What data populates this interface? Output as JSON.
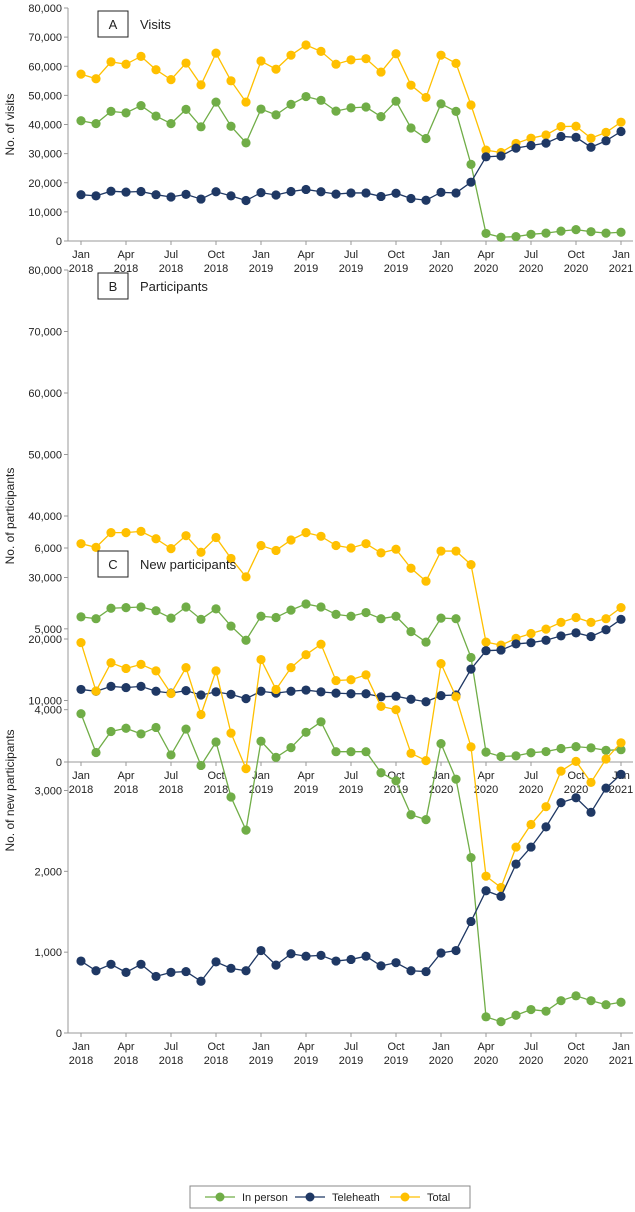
{
  "chart_data": [
    {
      "type": "line",
      "panel": "A",
      "title": "Visits",
      "ylabel": "No. of visits",
      "ylim": [
        0,
        80000
      ],
      "yticks": [
        "0",
        "10,000",
        "20,000",
        "30,000",
        "40,000",
        "50,000",
        "60,000",
        "70,000",
        "80,000"
      ],
      "series": [
        {
          "name": "Total",
          "values": [
            57300,
            55700,
            61500,
            60700,
            63400,
            58800,
            55400,
            61100,
            53600,
            64500,
            55000,
            47700,
            61800,
            59000,
            63800,
            67300,
            65100,
            60700,
            62200,
            62600,
            58000,
            64300,
            53500,
            49300,
            63800,
            61000,
            46700,
            31200,
            30400,
            33500,
            35300,
            36400,
            39300,
            39400,
            35300,
            37300,
            40800
          ]
        },
        {
          "name": "In person",
          "values": [
            41300,
            40300,
            44500,
            44000,
            46500,
            42900,
            40300,
            45200,
            39200,
            47700,
            39400,
            33700,
            45300,
            43300,
            46900,
            49600,
            48300,
            44600,
            45700,
            46000,
            42700,
            48000,
            38800,
            35200,
            47100,
            44500,
            26300,
            2600,
            1300,
            1500,
            2300,
            2700,
            3400,
            3900,
            3200,
            2700,
            3000
          ]
        },
        {
          "name": "Teleheath",
          "values": [
            15900,
            15500,
            17100,
            16800,
            17000,
            15900,
            15100,
            16000,
            14400,
            16900,
            15500,
            13900,
            16600,
            15800,
            17000,
            17700,
            16900,
            16100,
            16500,
            16500,
            15300,
            16400,
            14600,
            14000,
            16700,
            16500,
            20200,
            28900,
            29200,
            31900,
            32800,
            33600,
            35900,
            35600,
            32200,
            34400,
            37600
          ]
        }
      ]
    },
    {
      "type": "line",
      "panel": "B",
      "title": "Participants",
      "ylabel": "No. of participants",
      "ylim": [
        0,
        80000
      ],
      "yticks": [
        "0",
        "10,000",
        "20,000",
        "30,000",
        "40,000",
        "50,000",
        "60,000",
        "70,000",
        "80,000"
      ],
      "series": [
        {
          "name": "Total",
          "values": [
            35500,
            34900,
            37300,
            37300,
            37500,
            36300,
            34700,
            36800,
            34100,
            36500,
            33100,
            30100,
            35200,
            34400,
            36100,
            37300,
            36700,
            35200,
            34800,
            35500,
            34000,
            34600,
            31500,
            29400,
            34300,
            34300,
            32100,
            19500,
            19000,
            20100,
            20900,
            21600,
            22700,
            23500,
            22700,
            23300,
            25100
          ]
        },
        {
          "name": "In person",
          "values": [
            23600,
            23300,
            25000,
            25100,
            25200,
            24600,
            23400,
            25200,
            23200,
            24900,
            22100,
            19800,
            23700,
            23500,
            24700,
            25700,
            25200,
            24000,
            23700,
            24300,
            23300,
            23700,
            21200,
            19500,
            23400,
            23300,
            17000,
            1600,
            900,
            1000,
            1500,
            1700,
            2200,
            2500,
            2300,
            1900,
            2000
          ]
        },
        {
          "name": "Teleheath",
          "values": [
            11800,
            11500,
            12300,
            12100,
            12300,
            11500,
            11200,
            11600,
            10900,
            11400,
            11000,
            10300,
            11500,
            11200,
            11500,
            11700,
            11400,
            11200,
            11100,
            11100,
            10600,
            10700,
            10200,
            9800,
            10800,
            10900,
            15100,
            18100,
            18200,
            19200,
            19400,
            19800,
            20500,
            21000,
            20400,
            21500,
            23200
          ]
        }
      ]
    },
    {
      "type": "line",
      "panel": "C",
      "title": "New participants",
      "ylabel": "No. of new participants",
      "ylim": [
        0,
        6000
      ],
      "yticks": [
        "0",
        "1,000",
        "2,000",
        "3,000",
        "4,000",
        "5,000",
        "6,000"
      ],
      "series": [
        {
          "name": "Total",
          "values": [
            4830,
            4230,
            4580,
            4510,
            4560,
            4480,
            4200,
            4520,
            3940,
            4480,
            3710,
            3270,
            4620,
            4250,
            4520,
            4680,
            4810,
            4360,
            4370,
            4430,
            4040,
            4000,
            3460,
            3370,
            4570,
            4160,
            3540,
            1940,
            1800,
            2300,
            2580,
            2800,
            3240,
            3360,
            3100,
            3390,
            3590
          ]
        },
        {
          "name": "In person",
          "values": [
            3950,
            3470,
            3730,
            3770,
            3700,
            3780,
            3440,
            3760,
            3310,
            3600,
            2920,
            2510,
            3610,
            3410,
            3530,
            3720,
            3850,
            3480,
            3480,
            3480,
            3220,
            3120,
            2700,
            2640,
            3580,
            3140,
            2170,
            200,
            140,
            220,
            290,
            270,
            400,
            460,
            400,
            350,
            380
          ]
        },
        {
          "name": "Teleheath",
          "values": [
            890,
            770,
            850,
            750,
            850,
            700,
            750,
            760,
            640,
            880,
            800,
            770,
            1020,
            840,
            980,
            950,
            960,
            890,
            910,
            950,
            830,
            870,
            770,
            760,
            990,
            1020,
            1380,
            1760,
            1690,
            2090,
            2300,
            2550,
            2850,
            2910,
            2730,
            3030,
            3200
          ]
        }
      ]
    }
  ],
  "xticks": [
    [
      "Jan",
      "2018"
    ],
    [
      "Apr",
      "2018"
    ],
    [
      "Jul",
      "2018"
    ],
    [
      "Oct",
      "2018"
    ],
    [
      "Jan",
      "2019"
    ],
    [
      "Apr",
      "2019"
    ],
    [
      "Jul",
      "2019"
    ],
    [
      "Oct",
      "2019"
    ],
    [
      "Jan",
      "2020"
    ],
    [
      "Apr",
      "2020"
    ],
    [
      "Jul",
      "2020"
    ],
    [
      "Oct",
      "2020"
    ],
    [
      "Jan",
      "2021"
    ]
  ],
  "legend": {
    "placement": "bottom",
    "items": [
      "In person",
      "Teleheath",
      "Total"
    ]
  },
  "colors": {
    "In person": "#70ad47",
    "Teleheath": "#1f3864",
    "Total": "#ffc000"
  },
  "grid": false
}
